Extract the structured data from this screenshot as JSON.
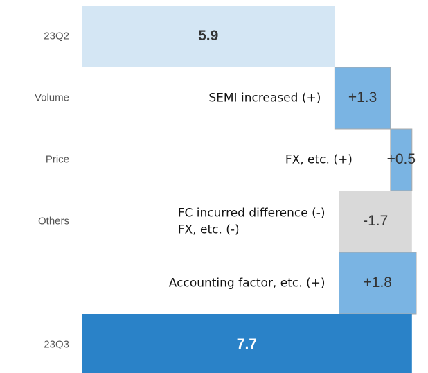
{
  "chart_data": {
    "type": "waterfall",
    "categories": [
      "23Q2",
      "Volume",
      "Price",
      "Others",
      null,
      "23Q3"
    ],
    "values": [
      5.9,
      1.3,
      0.5,
      -1.7,
      1.8,
      7.7
    ],
    "value_labels": [
      "5.9",
      "+1.3",
      "+0.5",
      "-1.7",
      "+1.8",
      "7.7"
    ],
    "colors": [
      "#d4e6f4",
      "#7ab4e3",
      "#7ab4e3",
      "#d9d9d9",
      "#7ab4e3",
      "#2a82c8"
    ],
    "annotations": [
      [
        "SEMI increased (+)"
      ],
      [
        "FX, etc. (+)"
      ],
      [
        "FC incurred difference (-)",
        "FX, etc. (-)"
      ],
      [
        "Accounting factor, etc. (+)"
      ]
    ]
  }
}
